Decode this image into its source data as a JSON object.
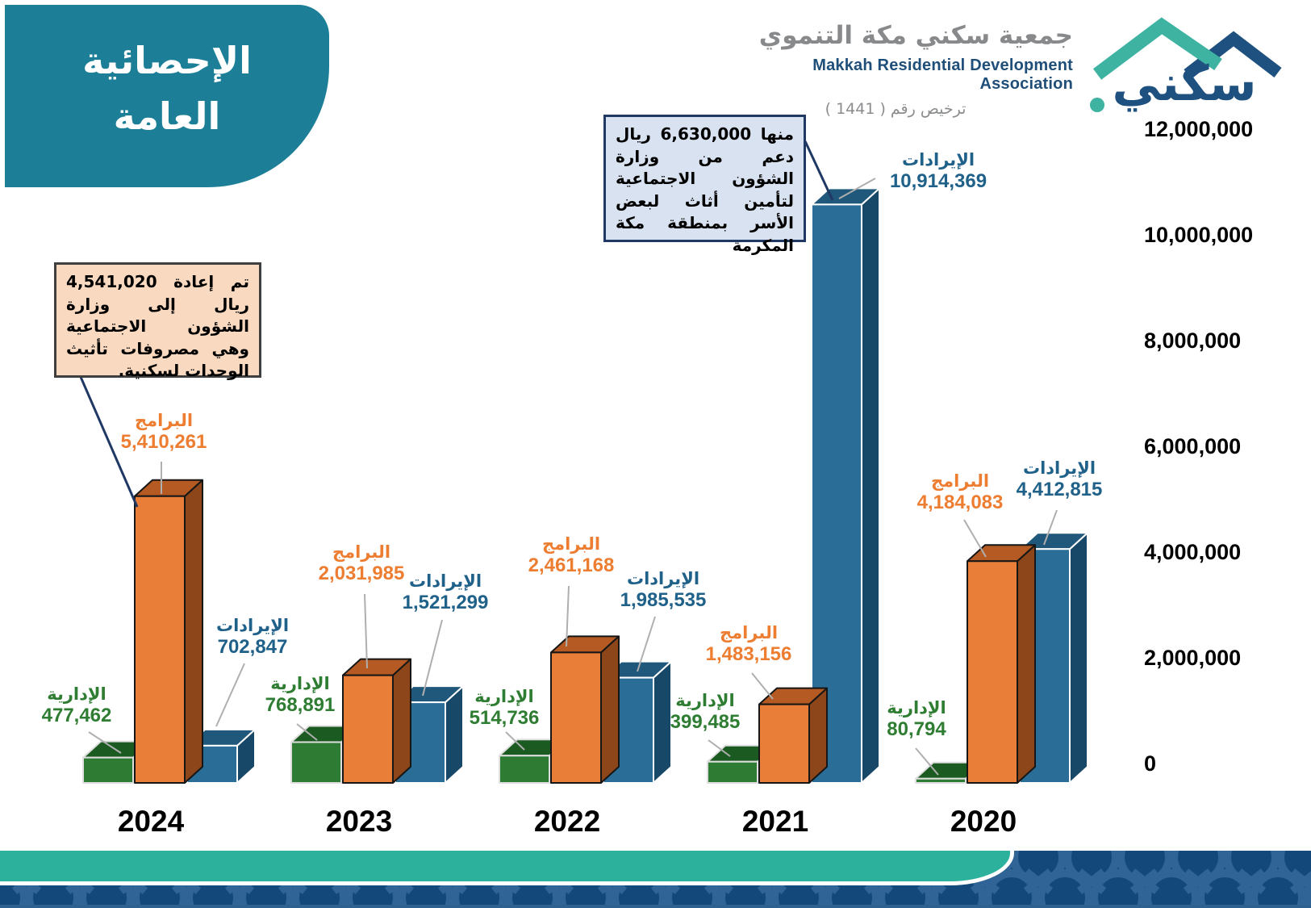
{
  "title": {
    "line1": "الإحصائية",
    "line2": "العامة"
  },
  "org": {
    "name_ar": "جمعية سكني مكة التنموي",
    "name_en": "Makkah Residential Development Association",
    "license": "ترخيص رقم ( 1441 )",
    "logo_text": "سكني"
  },
  "notes": {
    "revenue_note": "منها 6,630,000 ريال دعم من وزارة الشؤون الاجتماعية لتأمين أثاث لبعض الأسر بمنطقة مكة المكرمة",
    "programs_note": "تم إعادة 4,541,020 ريال إلى وزارة الشؤون الاجتماعية وهي مصروفات تأثيث الوحدات لسكنية."
  },
  "chart_data": {
    "type": "bar",
    "categories": [
      "2024",
      "2023",
      "2022",
      "2021",
      "2020"
    ],
    "series": [
      {
        "key": "admin",
        "name": "الإدارية",
        "color": "#2E7B33",
        "text_color": "#2E7D32",
        "values": [
          477462,
          768891,
          514736,
          399485,
          80794
        ]
      },
      {
        "key": "programs",
        "name": "البرامج",
        "color": "#E97E38",
        "text_color": "#ED7D31",
        "values": [
          5410261,
          2031985,
          2461168,
          1483156,
          4184083
        ]
      },
      {
        "key": "revenue",
        "name": "الإيرادات",
        "color": "#2A6E97",
        "text_color": "#20618A",
        "values": [
          702847,
          1521299,
          1985535,
          10914369,
          4412815
        ]
      }
    ],
    "title": "الإحصائية العامة",
    "xlabel": "",
    "ylabel": "",
    "ylim": [
      0,
      12000000
    ],
    "grid": false,
    "legend": "per-bar data labels",
    "yticks": [
      "12,000,000",
      "10,000,000",
      "8,000,000",
      "6,000,000",
      "4,000,000",
      "2,000,000",
      "0"
    ]
  }
}
